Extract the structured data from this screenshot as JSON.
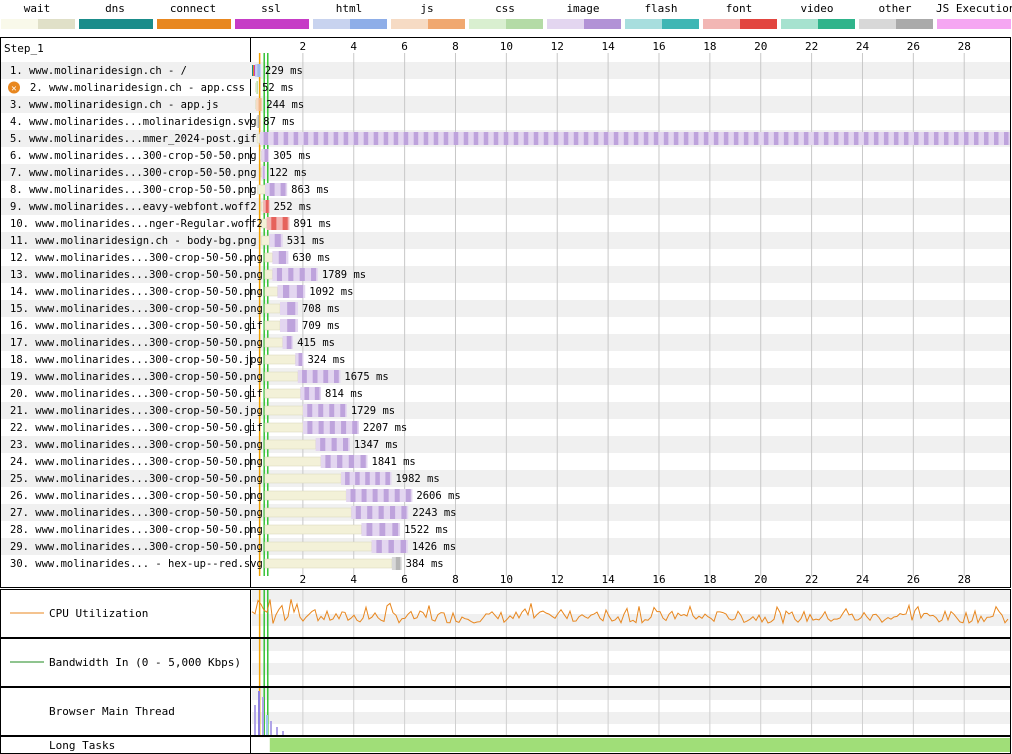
{
  "legend": [
    {
      "label": "wait",
      "c1": "#f9f9ea",
      "c2": "#e0e0c8"
    },
    {
      "label": "dns",
      "c1": "#1a8c8a",
      "c2": "#1a8c8a"
    },
    {
      "label": "connect",
      "c1": "#e8871f",
      "c2": "#e8871f"
    },
    {
      "label": "ssl",
      "c1": "#c63cc6",
      "c2": "#c63cc6"
    },
    {
      "label": "html",
      "c1": "#c8d3ef",
      "c2": "#8eaee8"
    },
    {
      "label": "js",
      "c1": "#f6dbc4",
      "c2": "#f0a870"
    },
    {
      "label": "css",
      "c1": "#d9efd0",
      "c2": "#b4dba6"
    },
    {
      "label": "image",
      "c1": "#e3d6f0",
      "c2": "#b292d6"
    },
    {
      "label": "flash",
      "c1": "#a8dede",
      "c2": "#3fb6b4"
    },
    {
      "label": "font",
      "c1": "#f2b6b4",
      "c2": "#e2453f"
    },
    {
      "label": "video",
      "c1": "#a6e2cf",
      "c2": "#2fb48b"
    },
    {
      "label": "other",
      "c1": "#d8d8d8",
      "c2": "#aaaaaa"
    },
    {
      "label": "JS Execution",
      "c1": "#f5a6f2",
      "c2": "#f5a6f2"
    }
  ],
  "step_label": "Step_1",
  "colors": {
    "wait": "#f3f1d8",
    "wait_edge": "#d8d6b8",
    "dns": "#1a8c8a",
    "connect": "#e8871f",
    "ssl": "#c63cc6",
    "image_light": "#e3d6f0",
    "image_dark": "#b292d6",
    "js_light": "#f6dbc4",
    "js_dark": "#f0a870",
    "css_light": "#d9efd0",
    "font_light": "#f2b6b4",
    "font_dark": "#e2453f",
    "other_light": "#d8d8d8",
    "jsexec": "#f5a6f2",
    "cpu_line": "#e8871f",
    "bw_line": "#1f8a1f",
    "long_tasks": "#a0de78",
    "start_render": "#36c236",
    "dom_line": "#f0a000",
    "row_alt": "#f0f0f0"
  },
  "chart_data": {
    "type": "waterfall",
    "x_unit": "seconds",
    "xlim": [
      0,
      29.8
    ],
    "ticks": [
      2,
      4,
      6,
      8,
      10,
      12,
      14,
      16,
      18,
      20,
      22,
      24,
      26,
      28
    ],
    "markers": [
      {
        "name": "dom content",
        "t": 0.3
      },
      {
        "name": "start render",
        "t": 0.48
      },
      {
        "name": "on load",
        "t": 0.62
      }
    ],
    "requests": [
      {
        "label": "1. www.molinaridesign.ch - /",
        "type": "html",
        "start": 0.0,
        "wait": 0.0,
        "dns": 0.04,
        "connect": 0.04,
        "ssl": 0.04,
        "ms": 229,
        "error": false
      },
      {
        "label": "2. www.molinaridesign.ch - app.css",
        "type": "css",
        "start": 0.14,
        "wait": 0.02,
        "dns": 0,
        "connect": 0,
        "ssl": 0,
        "ms": 52,
        "error": true
      },
      {
        "label": "3. www.molinaridesign.ch - app.js",
        "type": "js",
        "start": 0.14,
        "wait": 0.02,
        "dns": 0,
        "connect": 0,
        "ssl": 0,
        "ms": 244,
        "error": false
      },
      {
        "label": "4. www.molinarides...molinaridesign.svg",
        "type": "other",
        "start": 0.18,
        "wait": 0.02,
        "dns": 0,
        "connect": 0,
        "ssl": 0,
        "ms": 87,
        "error": false
      },
      {
        "label": "5. www.molinarides...mmer_2024-post.gif",
        "type": "image",
        "start": 0.2,
        "wait": 0.1,
        "dns": 0,
        "connect": 0,
        "ssl": 0,
        "ms": 29600,
        "error": false
      },
      {
        "label": "6. www.molinarides...300-crop-50-50.png",
        "type": "image",
        "start": 0.32,
        "wait": 0.05,
        "dns": 0,
        "connect": 0,
        "ssl": 0,
        "ms": 305,
        "error": false
      },
      {
        "label": "7. www.molinarides...300-crop-50-50.png",
        "type": "image",
        "start": 0.35,
        "wait": 0.04,
        "dns": 0,
        "connect": 0,
        "ssl": 0,
        "ms": 122,
        "error": false
      },
      {
        "label": "8. www.molinarides...300-crop-50-50.png",
        "type": "image",
        "start": 0.22,
        "wait": 0.3,
        "dns": 0,
        "connect": 0,
        "ssl": 0,
        "ms": 863,
        "error": false
      },
      {
        "label": "9. www.molinarides...eavy-webfont.woff2",
        "type": "font",
        "start": 0.38,
        "wait": 0.06,
        "dns": 0,
        "connect": 0,
        "ssl": 0,
        "ms": 252,
        "error": false
      },
      {
        "label": "10. www.molinarides...nger-Regular.woff2",
        "type": "font",
        "start": 0.38,
        "wait": 0.2,
        "dns": 0,
        "connect": 0,
        "ssl": 0,
        "ms": 891,
        "error": false
      },
      {
        "label": "11. www.molinaridesign.ch - body-bg.png",
        "type": "image",
        "start": 0.38,
        "wait": 0.3,
        "dns": 0,
        "connect": 0,
        "ssl": 0,
        "ms": 531,
        "error": false
      },
      {
        "label": "12. www.molinarides...300-crop-50-50.png",
        "type": "image",
        "start": 0.5,
        "wait": 0.3,
        "dns": 0,
        "connect": 0,
        "ssl": 0,
        "ms": 630,
        "error": false
      },
      {
        "label": "13. www.molinarides...300-crop-50-50.png",
        "type": "image",
        "start": 0.5,
        "wait": 0.3,
        "dns": 0,
        "connect": 0,
        "ssl": 0,
        "ms": 1789,
        "error": false
      },
      {
        "label": "14. www.molinarides...300-crop-50-50.png",
        "type": "image",
        "start": 0.5,
        "wait": 0.5,
        "dns": 0,
        "connect": 0,
        "ssl": 0,
        "ms": 1092,
        "error": false
      },
      {
        "label": "15. www.molinarides...300-crop-50-50.png",
        "type": "image",
        "start": 0.5,
        "wait": 0.6,
        "dns": 0,
        "connect": 0,
        "ssl": 0,
        "ms": 708,
        "error": false
      },
      {
        "label": "16. www.molinarides...300-crop-50-50.gif",
        "type": "image",
        "start": 0.5,
        "wait": 0.6,
        "dns": 0,
        "connect": 0,
        "ssl": 0,
        "ms": 709,
        "error": false
      },
      {
        "label": "17. www.molinarides...300-crop-50-50.png",
        "type": "image",
        "start": 0.5,
        "wait": 0.7,
        "dns": 0,
        "connect": 0,
        "ssl": 0,
        "ms": 415,
        "error": false
      },
      {
        "label": "18. www.molinarides...300-crop-50-50.jpg",
        "type": "image",
        "start": 0.5,
        "wait": 1.2,
        "dns": 0,
        "connect": 0,
        "ssl": 0,
        "ms": 324,
        "error": false
      },
      {
        "label": "19. www.molinarides...300-crop-50-50.png",
        "type": "image",
        "start": 0.5,
        "wait": 1.3,
        "dns": 0,
        "connect": 0,
        "ssl": 0,
        "ms": 1675,
        "error": false
      },
      {
        "label": "20. www.molinarides...300-crop-50-50.gif",
        "type": "image",
        "start": 0.5,
        "wait": 1.4,
        "dns": 0,
        "connect": 0,
        "ssl": 0,
        "ms": 814,
        "error": false
      },
      {
        "label": "21. www.molinarides...300-crop-50-50.jpg",
        "type": "image",
        "start": 0.5,
        "wait": 1.5,
        "dns": 0,
        "connect": 0,
        "ssl": 0,
        "ms": 1729,
        "error": false
      },
      {
        "label": "22. www.molinarides...300-crop-50-50.gif",
        "type": "image",
        "start": 0.5,
        "wait": 1.5,
        "dns": 0,
        "connect": 0,
        "ssl": 0,
        "ms": 2207,
        "error": false
      },
      {
        "label": "23. www.molinarides...300-crop-50-50.png",
        "type": "image",
        "start": 0.5,
        "wait": 2.0,
        "dns": 0,
        "connect": 0,
        "ssl": 0,
        "ms": 1347,
        "error": false
      },
      {
        "label": "24. www.molinarides...300-crop-50-50.png",
        "type": "image",
        "start": 0.5,
        "wait": 2.2,
        "dns": 0,
        "connect": 0,
        "ssl": 0,
        "ms": 1841,
        "error": false
      },
      {
        "label": "25. www.molinarides...300-crop-50-50.png",
        "type": "image",
        "start": 0.5,
        "wait": 3.0,
        "dns": 0,
        "connect": 0,
        "ssl": 0,
        "ms": 1982,
        "error": false
      },
      {
        "label": "26. www.molinarides...300-crop-50-50.png",
        "type": "image",
        "start": 0.5,
        "wait": 3.2,
        "dns": 0,
        "connect": 0,
        "ssl": 0,
        "ms": 2606,
        "error": false
      },
      {
        "label": "27. www.molinarides...300-crop-50-50.png",
        "type": "image",
        "start": 0.5,
        "wait": 3.4,
        "dns": 0,
        "connect": 0,
        "ssl": 0,
        "ms": 2243,
        "error": false
      },
      {
        "label": "28. www.molinarides...300-crop-50-50.png",
        "type": "image",
        "start": 0.5,
        "wait": 3.8,
        "dns": 0,
        "connect": 0,
        "ssl": 0,
        "ms": 1522,
        "error": false
      },
      {
        "label": "29. www.molinarides...300-crop-50-50.png",
        "type": "image",
        "start": 0.5,
        "wait": 4.2,
        "dns": 0,
        "connect": 0,
        "ssl": 0,
        "ms": 1426,
        "error": false
      },
      {
        "label": "30. www.molinarides... - hex-up--red.svg",
        "type": "other",
        "start": 0.5,
        "wait": 5.0,
        "dns": 0,
        "connect": 0,
        "ssl": 0,
        "ms": 384,
        "error": false
      }
    ],
    "cpu_label": "CPU Utilization",
    "bandwidth_label": "Bandwidth In (0 - 5,000 Kbps)",
    "main_thread_label": "Browser Main Thread",
    "long_tasks_label": "Long Tasks",
    "long_tasks_start": 0.7
  }
}
